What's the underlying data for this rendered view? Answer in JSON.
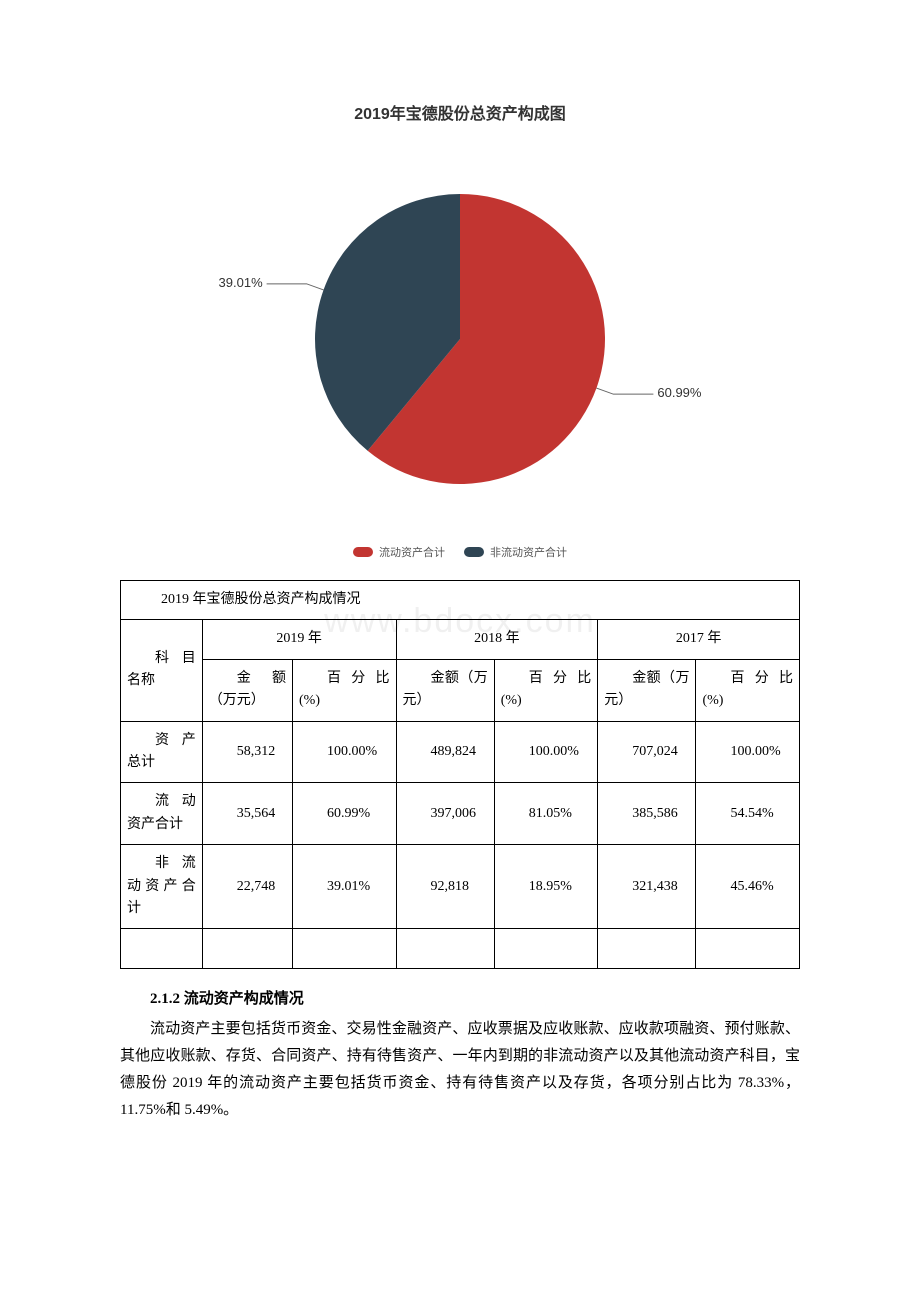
{
  "chart": {
    "title": "2019年宝德股份总资产构成图",
    "type": "pie",
    "background_color": "#ffffff",
    "title_fontsize": 16,
    "title_color": "#333333",
    "label_fontsize": 13,
    "label_color": "#333333",
    "leader_color": "#666666",
    "slices": [
      {
        "label": "流动资产合计",
        "value": 60.99,
        "color": "#c23531",
        "display": "60.99%"
      },
      {
        "label": "非流动资产合计",
        "value": 39.01,
        "color": "#2f4554",
        "display": "39.01%"
      }
    ],
    "legend_fontsize": 11,
    "legend_color": "#555555"
  },
  "watermark": "www.bdocx.com",
  "table": {
    "caption": "2019 年宝德股份总资产构成情况",
    "years": [
      "2019 年",
      "2018 年",
      "2017 年"
    ],
    "sub_headers": {
      "rowhead": "科目名称",
      "amount": "金额（万元）",
      "pct": "百分比(%)"
    },
    "rows": [
      {
        "name": "资产总计",
        "y2019_amt": "58,312",
        "y2019_pct": "100.00%",
        "y2018_amt": "489,824",
        "y2018_pct": "100.00%",
        "y2017_amt": "707,024",
        "y2017_pct": "100.00%"
      },
      {
        "name": "流动资产合计",
        "y2019_amt": "35,564",
        "y2019_pct": "60.99%",
        "y2018_amt": "397,006",
        "y2018_pct": "81.05%",
        "y2017_amt": "385,586",
        "y2017_pct": "54.54%"
      },
      {
        "name": "非流动资产合计",
        "y2019_amt": "22,748",
        "y2019_pct": "39.01%",
        "y2018_amt": "92,818",
        "y2018_pct": "18.95%",
        "y2017_amt": "321,438",
        "y2017_pct": "45.46%"
      }
    ]
  },
  "section": {
    "heading": "2.1.2 流动资产构成情况",
    "body": "流动资产主要包括货币资金、交易性金融资产、应收票据及应收账款、应收款项融资、预付账款、其他应收账款、存货、合同资产、持有待售资产、一年内到期的非流动资产以及其他流动资产科目，宝德股份 2019 年的流动资产主要包括货币资金、持有待售资产以及存货，各项分别占比为 78.33%，11.75%和 5.49%。"
  }
}
